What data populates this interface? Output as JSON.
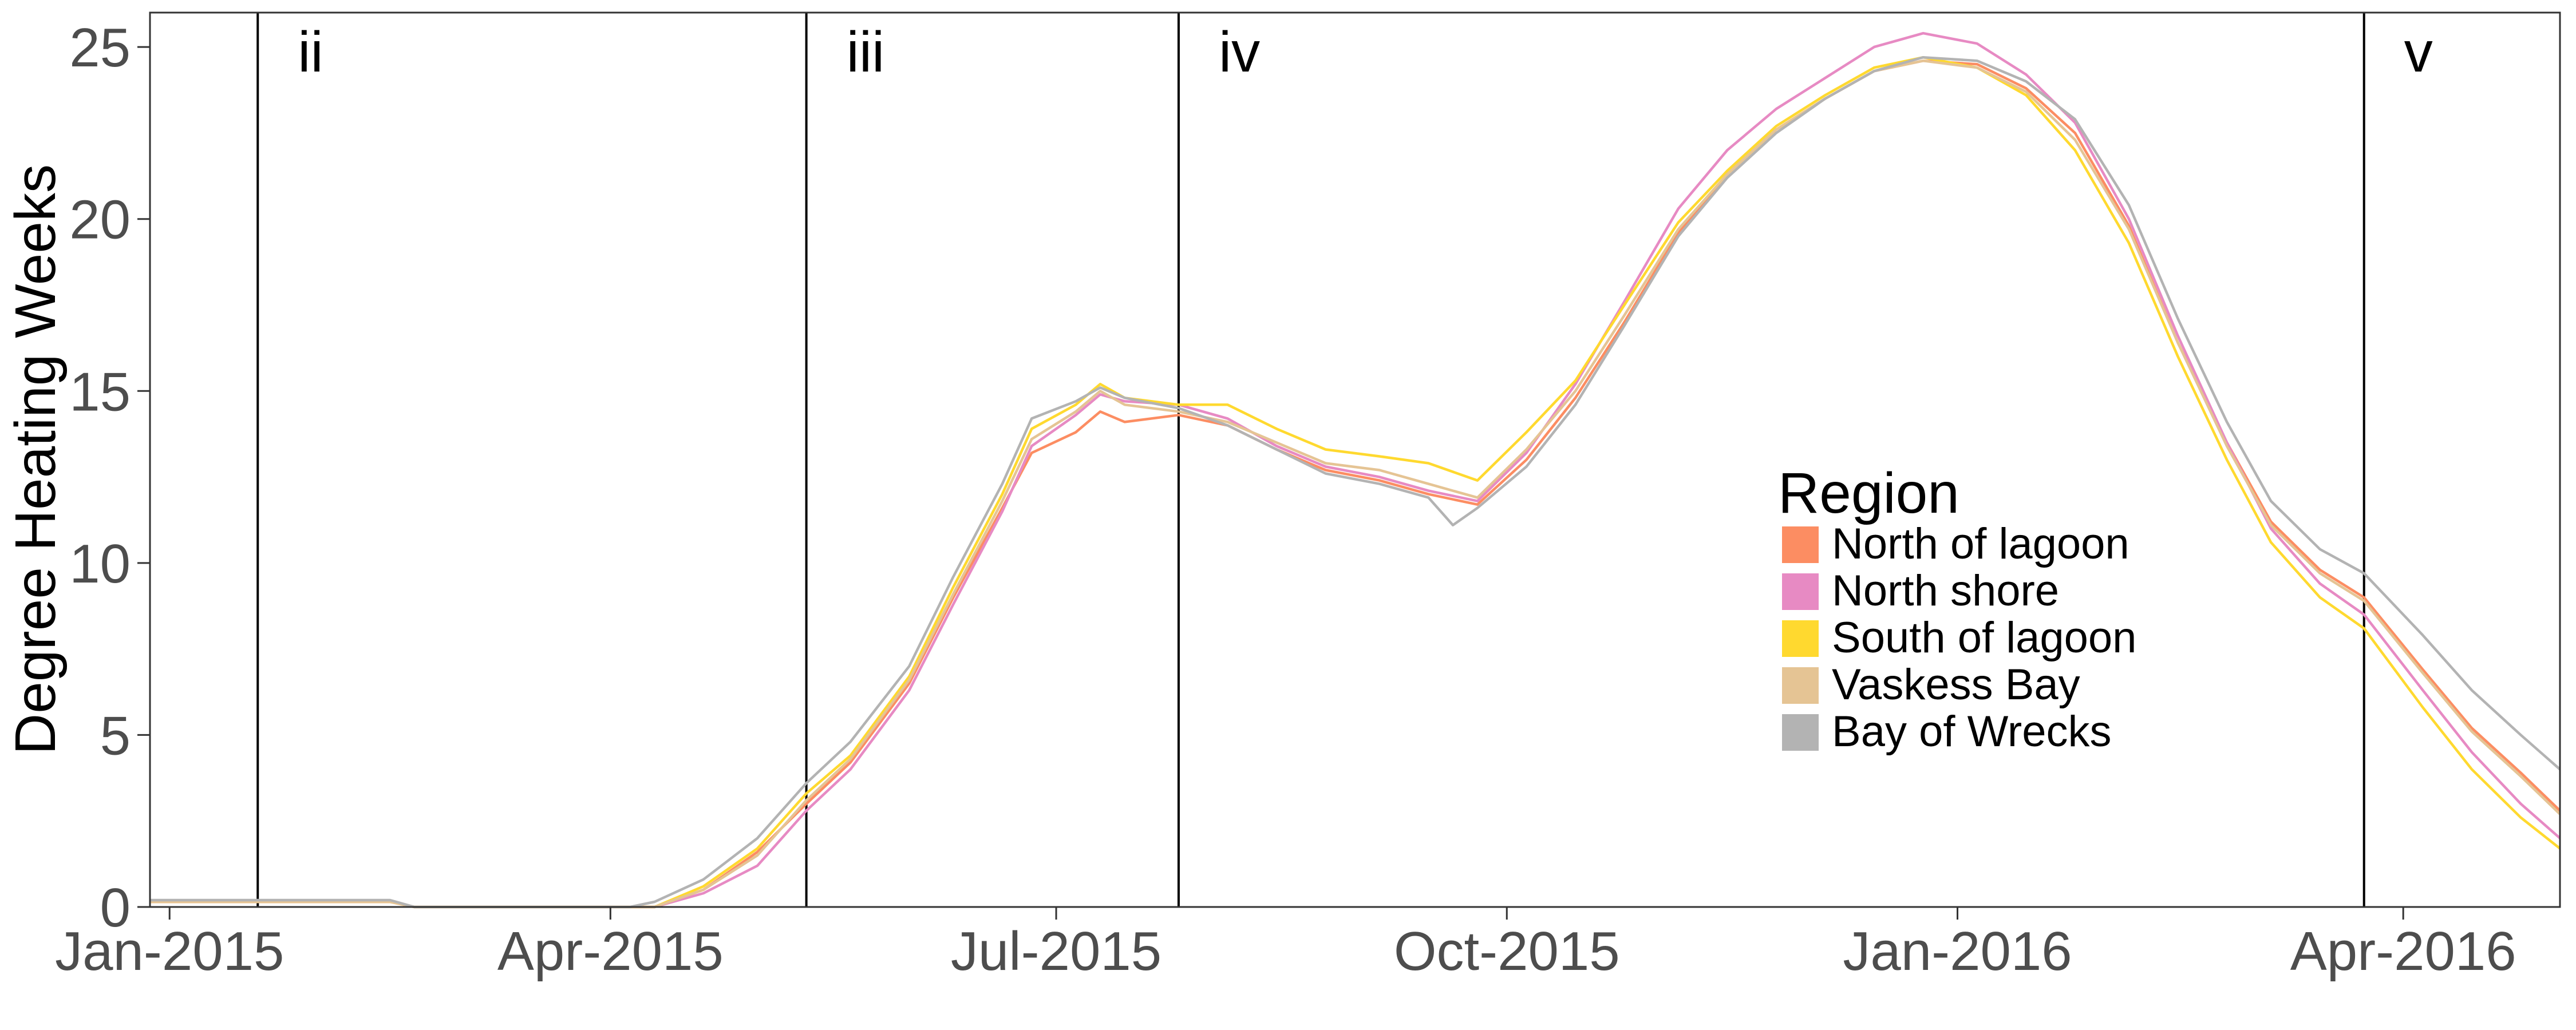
{
  "chart_data": {
    "type": "line",
    "xlabel": "",
    "ylabel": "Degree Heating Weeks",
    "x_range": [
      "2014-12-28",
      "2016-05-03"
    ],
    "ylim": [
      0,
      26
    ],
    "grid": false,
    "x_ticks": [
      {
        "date": "2015-01-01",
        "label": "Jan-2015"
      },
      {
        "date": "2015-04-01",
        "label": "Apr-2015"
      },
      {
        "date": "2015-07-01",
        "label": "Jul-2015"
      },
      {
        "date": "2015-10-01",
        "label": "Oct-2015"
      },
      {
        "date": "2016-01-01",
        "label": "Jan-2016"
      },
      {
        "date": "2016-04-01",
        "label": "Apr-2016"
      }
    ],
    "y_ticks": [
      0,
      5,
      10,
      15,
      20,
      25
    ],
    "periods": [
      {
        "label": "ii",
        "start": "2015-01-19"
      },
      {
        "label": "iii",
        "start": "2015-05-11"
      },
      {
        "label": "iv",
        "start": "2015-07-26"
      },
      {
        "label": "v",
        "start": "2016-03-24"
      }
    ],
    "legend": {
      "title": "Region",
      "placement": "center-right"
    },
    "series": [
      {
        "name": "North of lagoon",
        "color": "#fc8d62",
        "points": [
          [
            "2014-12-28",
            0.15
          ],
          [
            "2015-02-15",
            0.15
          ],
          [
            "2015-02-20",
            0
          ],
          [
            "2015-04-10",
            0
          ],
          [
            "2015-04-20",
            0.5
          ],
          [
            "2015-05-01",
            1.6
          ],
          [
            "2015-05-11",
            3.0
          ],
          [
            "2015-05-20",
            4.2
          ],
          [
            "2015-06-01",
            6.5
          ],
          [
            "2015-06-10",
            9.0
          ],
          [
            "2015-06-20",
            11.6
          ],
          [
            "2015-06-26",
            13.2
          ],
          [
            "2015-07-05",
            13.8
          ],
          [
            "2015-07-10",
            14.4
          ],
          [
            "2015-07-15",
            14.1
          ],
          [
            "2015-07-26",
            14.3
          ],
          [
            "2015-08-05",
            14.0
          ],
          [
            "2015-08-15",
            13.3
          ],
          [
            "2015-08-25",
            12.7
          ],
          [
            "2015-09-05",
            12.4
          ],
          [
            "2015-09-15",
            12.0
          ],
          [
            "2015-09-25",
            11.7
          ],
          [
            "2015-10-05",
            13.0
          ],
          [
            "2015-10-15",
            14.8
          ],
          [
            "2015-10-25",
            17.0
          ],
          [
            "2015-11-05",
            19.6
          ],
          [
            "2015-11-15",
            21.3
          ],
          [
            "2015-11-25",
            22.6
          ],
          [
            "2015-12-05",
            23.5
          ],
          [
            "2015-12-15",
            24.3
          ],
          [
            "2015-12-25",
            24.6
          ],
          [
            "2016-01-05",
            24.5
          ],
          [
            "2016-01-15",
            23.8
          ],
          [
            "2016-01-25",
            22.5
          ],
          [
            "2016-02-05",
            19.8
          ],
          [
            "2016-02-15",
            16.4
          ],
          [
            "2016-02-25",
            13.5
          ],
          [
            "2016-03-05",
            11.2
          ],
          [
            "2016-03-15",
            9.8
          ],
          [
            "2016-03-24",
            9.0
          ],
          [
            "2016-04-05",
            6.9
          ],
          [
            "2016-04-15",
            5.2
          ],
          [
            "2016-04-25",
            3.9
          ],
          [
            "2016-05-03",
            2.8
          ]
        ]
      },
      {
        "name": "North shore",
        "color": "#e78ac3",
        "points": [
          [
            "2014-12-28",
            0.15
          ],
          [
            "2015-02-15",
            0.15
          ],
          [
            "2015-02-20",
            0
          ],
          [
            "2015-04-10",
            0
          ],
          [
            "2015-04-20",
            0.4
          ],
          [
            "2015-05-01",
            1.2
          ],
          [
            "2015-05-11",
            2.8
          ],
          [
            "2015-05-20",
            4.0
          ],
          [
            "2015-06-01",
            6.3
          ],
          [
            "2015-06-10",
            8.8
          ],
          [
            "2015-06-20",
            11.5
          ],
          [
            "2015-06-26",
            13.4
          ],
          [
            "2015-07-05",
            14.3
          ],
          [
            "2015-07-10",
            14.9
          ],
          [
            "2015-07-15",
            14.7
          ],
          [
            "2015-07-26",
            14.6
          ],
          [
            "2015-08-05",
            14.2
          ],
          [
            "2015-08-15",
            13.4
          ],
          [
            "2015-08-25",
            12.8
          ],
          [
            "2015-09-05",
            12.5
          ],
          [
            "2015-09-15",
            12.1
          ],
          [
            "2015-09-25",
            11.8
          ],
          [
            "2015-10-05",
            13.2
          ],
          [
            "2015-10-15",
            15.2
          ],
          [
            "2015-10-25",
            17.6
          ],
          [
            "2015-11-05",
            20.3
          ],
          [
            "2015-11-15",
            22.0
          ],
          [
            "2015-11-25",
            23.2
          ],
          [
            "2015-12-05",
            24.1
          ],
          [
            "2015-12-15",
            25.0
          ],
          [
            "2015-12-25",
            25.4
          ],
          [
            "2016-01-05",
            25.1
          ],
          [
            "2016-01-15",
            24.2
          ],
          [
            "2016-01-25",
            22.8
          ],
          [
            "2016-02-05",
            20.0
          ],
          [
            "2016-02-15",
            16.6
          ],
          [
            "2016-02-25",
            13.5
          ],
          [
            "2016-03-05",
            11.0
          ],
          [
            "2016-03-15",
            9.4
          ],
          [
            "2016-03-24",
            8.5
          ],
          [
            "2016-04-05",
            6.3
          ],
          [
            "2016-04-15",
            4.5
          ],
          [
            "2016-04-25",
            3.0
          ],
          [
            "2016-05-03",
            2.0
          ]
        ]
      },
      {
        "name": "South of lagoon",
        "color": "#ffd92f",
        "points": [
          [
            "2014-12-28",
            0.15
          ],
          [
            "2015-02-15",
            0.15
          ],
          [
            "2015-02-20",
            0
          ],
          [
            "2015-04-10",
            0
          ],
          [
            "2015-04-20",
            0.6
          ],
          [
            "2015-05-01",
            1.7
          ],
          [
            "2015-05-11",
            3.3
          ],
          [
            "2015-05-20",
            4.4
          ],
          [
            "2015-06-01",
            6.7
          ],
          [
            "2015-06-10",
            9.3
          ],
          [
            "2015-06-20",
            12.0
          ],
          [
            "2015-06-26",
            13.9
          ],
          [
            "2015-07-05",
            14.6
          ],
          [
            "2015-07-10",
            15.2
          ],
          [
            "2015-07-15",
            14.8
          ],
          [
            "2015-07-26",
            14.6
          ],
          [
            "2015-08-05",
            14.6
          ],
          [
            "2015-08-15",
            13.9
          ],
          [
            "2015-08-25",
            13.3
          ],
          [
            "2015-09-05",
            13.1
          ],
          [
            "2015-09-15",
            12.9
          ],
          [
            "2015-09-25",
            12.4
          ],
          [
            "2015-10-05",
            13.8
          ],
          [
            "2015-10-15",
            15.3
          ],
          [
            "2015-10-25",
            17.5
          ],
          [
            "2015-11-05",
            19.9
          ],
          [
            "2015-11-15",
            21.4
          ],
          [
            "2015-11-25",
            22.7
          ],
          [
            "2015-12-05",
            23.6
          ],
          [
            "2015-12-15",
            24.4
          ],
          [
            "2015-12-25",
            24.7
          ],
          [
            "2016-01-05",
            24.4
          ],
          [
            "2016-01-15",
            23.6
          ],
          [
            "2016-01-25",
            22.0
          ],
          [
            "2016-02-05",
            19.3
          ],
          [
            "2016-02-15",
            16.0
          ],
          [
            "2016-02-25",
            13.0
          ],
          [
            "2016-03-05",
            10.6
          ],
          [
            "2016-03-15",
            9.0
          ],
          [
            "2016-03-24",
            8.1
          ],
          [
            "2016-04-05",
            5.8
          ],
          [
            "2016-04-15",
            4.0
          ],
          [
            "2016-04-25",
            2.6
          ],
          [
            "2016-05-03",
            1.7
          ]
        ]
      },
      {
        "name": "Vaskess Bay",
        "color": "#e5c494",
        "points": [
          [
            "2014-12-28",
            0.15
          ],
          [
            "2015-02-15",
            0.15
          ],
          [
            "2015-02-20",
            0
          ],
          [
            "2015-04-10",
            0
          ],
          [
            "2015-04-20",
            0.5
          ],
          [
            "2015-05-01",
            1.5
          ],
          [
            "2015-05-11",
            3.1
          ],
          [
            "2015-05-20",
            4.3
          ],
          [
            "2015-06-01",
            6.6
          ],
          [
            "2015-06-10",
            9.1
          ],
          [
            "2015-06-20",
            11.8
          ],
          [
            "2015-06-26",
            13.6
          ],
          [
            "2015-07-05",
            14.4
          ],
          [
            "2015-07-10",
            15.0
          ],
          [
            "2015-07-15",
            14.6
          ],
          [
            "2015-07-26",
            14.4
          ],
          [
            "2015-08-05",
            14.1
          ],
          [
            "2015-08-15",
            13.5
          ],
          [
            "2015-08-25",
            12.9
          ],
          [
            "2015-09-05",
            12.7
          ],
          [
            "2015-09-15",
            12.3
          ],
          [
            "2015-09-25",
            11.9
          ],
          [
            "2015-10-05",
            13.3
          ],
          [
            "2015-10-15",
            15.0
          ],
          [
            "2015-10-25",
            17.2
          ],
          [
            "2015-11-05",
            19.7
          ],
          [
            "2015-11-15",
            21.3
          ],
          [
            "2015-11-25",
            22.6
          ],
          [
            "2015-12-05",
            23.5
          ],
          [
            "2015-12-15",
            24.3
          ],
          [
            "2015-12-25",
            24.6
          ],
          [
            "2016-01-05",
            24.4
          ],
          [
            "2016-01-15",
            23.7
          ],
          [
            "2016-01-25",
            22.3
          ],
          [
            "2016-02-05",
            19.7
          ],
          [
            "2016-02-15",
            16.4
          ],
          [
            "2016-02-25",
            13.4
          ],
          [
            "2016-03-05",
            11.1
          ],
          [
            "2016-03-15",
            9.7
          ],
          [
            "2016-03-24",
            8.9
          ],
          [
            "2016-04-05",
            6.8
          ],
          [
            "2016-04-15",
            5.1
          ],
          [
            "2016-04-25",
            3.8
          ],
          [
            "2016-05-03",
            2.7
          ]
        ]
      },
      {
        "name": "Bay of Wrecks",
        "color": "#b3b3b3",
        "points": [
          [
            "2014-12-28",
            0.2
          ],
          [
            "2015-02-15",
            0.2
          ],
          [
            "2015-02-20",
            0
          ],
          [
            "2015-04-05",
            0
          ],
          [
            "2015-04-10",
            0.15
          ],
          [
            "2015-04-20",
            0.8
          ],
          [
            "2015-05-01",
            2.0
          ],
          [
            "2015-05-11",
            3.6
          ],
          [
            "2015-05-20",
            4.8
          ],
          [
            "2015-06-01",
            7.0
          ],
          [
            "2015-06-10",
            9.6
          ],
          [
            "2015-06-20",
            12.3
          ],
          [
            "2015-06-26",
            14.2
          ],
          [
            "2015-07-05",
            14.7
          ],
          [
            "2015-07-10",
            15.1
          ],
          [
            "2015-07-15",
            14.8
          ],
          [
            "2015-07-26",
            14.5
          ],
          [
            "2015-08-05",
            14.0
          ],
          [
            "2015-08-15",
            13.3
          ],
          [
            "2015-08-25",
            12.6
          ],
          [
            "2015-09-05",
            12.3
          ],
          [
            "2015-09-15",
            11.9
          ],
          [
            "2015-09-20",
            11.1
          ],
          [
            "2015-09-25",
            11.6
          ],
          [
            "2015-10-05",
            12.8
          ],
          [
            "2015-10-15",
            14.6
          ],
          [
            "2015-10-25",
            16.9
          ],
          [
            "2015-11-05",
            19.5
          ],
          [
            "2015-11-15",
            21.2
          ],
          [
            "2015-11-25",
            22.5
          ],
          [
            "2015-12-05",
            23.5
          ],
          [
            "2015-12-15",
            24.3
          ],
          [
            "2015-12-25",
            24.7
          ],
          [
            "2016-01-05",
            24.6
          ],
          [
            "2016-01-15",
            24.0
          ],
          [
            "2016-01-25",
            22.9
          ],
          [
            "2016-02-05",
            20.4
          ],
          [
            "2016-02-15",
            17.1
          ],
          [
            "2016-02-25",
            14.1
          ],
          [
            "2016-03-05",
            11.8
          ],
          [
            "2016-03-15",
            10.4
          ],
          [
            "2016-03-24",
            9.7
          ],
          [
            "2016-04-05",
            7.9
          ],
          [
            "2016-04-15",
            6.3
          ],
          [
            "2016-04-25",
            5.0
          ],
          [
            "2016-05-03",
            4.0
          ]
        ]
      }
    ]
  }
}
